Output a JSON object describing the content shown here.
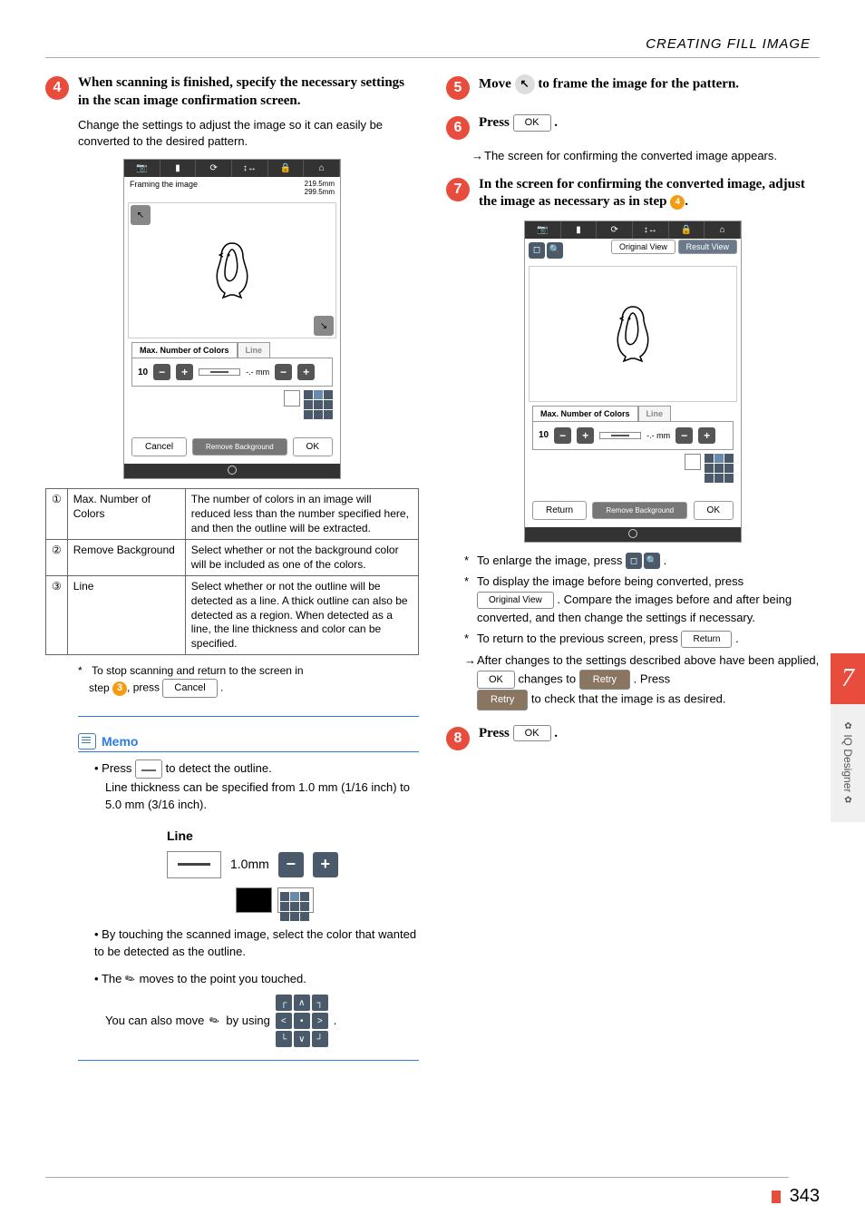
{
  "header": {
    "section_title": "CREATING FILL IMAGE"
  },
  "left": {
    "step4": {
      "num": "4",
      "title": "When scanning is finished, specify the necessary settings in the scan image confirmation screen.",
      "body": "Change the settings to adjust the image so it can easily be converted to the desired pattern."
    },
    "screenshot1": {
      "framing_label": "Framing the image",
      "size_w": "219.5mm",
      "size_h": "299.5mm",
      "tab_colors": "Max. Number of Colors",
      "tab_line": "Line",
      "color_val": "10",
      "line_val": "-.- mm",
      "cancel": "Cancel",
      "remove_bg": "Remove Background",
      "ok": "OK"
    },
    "table": {
      "rows": [
        {
          "idx": "①",
          "label": "Max. Number of Colors",
          "desc": "The number of colors in an image will reduced less than the number specified here, and then the outline will be extracted."
        },
        {
          "idx": "②",
          "label": "Remove Background",
          "desc": "Select whether or not the background color will be included as one of the colors."
        },
        {
          "idx": "③",
          "label": "Line",
          "desc": "Select whether or not the outline will be detected as a line. A thick outline can also be detected as a region. When detected as a line, the line thickness and color can be specified."
        }
      ]
    },
    "stop_note_pre": "To stop scanning and return to the screen in",
    "stop_note_step": "step",
    "stop_note_ref": "3",
    "stop_note_mid": ", press",
    "stop_note_btn": "Cancel",
    "memo": {
      "title": "Memo",
      "b1_pre": "Press",
      "b1_post": "to detect the outline.",
      "b1_line2": "Line thickness can be specified from 1.0 mm (1/16 inch) to 5.0 mm (3/16 inch).",
      "line_label": "Line",
      "line_val": "1.0mm",
      "b2": "By touching the scanned image, select the color that wanted to be detected as the outline.",
      "b3_pre": "The",
      "b3_post": "moves to the point you touched.",
      "b4_pre": "You can also move",
      "b4_mid": "by using"
    }
  },
  "right": {
    "step5": {
      "num": "5",
      "title_pre": "Move",
      "title_post": "to frame the image for the pattern."
    },
    "step6": {
      "num": "6",
      "title": "Press",
      "ok": "OK",
      "note": "The screen for confirming the converted image appears."
    },
    "step7": {
      "num": "7",
      "title": "In the screen for confirming the converted image, adjust the image as necessary as in step",
      "ref": "4"
    },
    "screenshot2": {
      "orig_view": "Original View",
      "result_view": "Result View",
      "tab_colors": "Max. Number of Colors",
      "tab_line": "Line",
      "color_val": "10",
      "line_val": "-.- mm",
      "return": "Return",
      "remove_bg": "Remove Background",
      "ok": "OK"
    },
    "notes": {
      "n1_pre": "To enlarge the image, press",
      "n2_pre": "To display the image before being converted, press",
      "n2_btn": "Original View",
      "n2_post": ". Compare the images before and after being converted, and then change the settings if necessary.",
      "n3_pre": "To return to the previous screen, press",
      "n3_btn": "Return",
      "n4_pre": "After changes to the settings described above have been applied,",
      "n4_ok": "OK",
      "n4_mid": "changes to",
      "n4_retry": "Retry",
      "n4_post1": ". Press",
      "n4_retry2": "Retry",
      "n4_post2": "to check that the image is as desired."
    },
    "step8": {
      "num": "8",
      "title": "Press",
      "ok": "OK"
    }
  },
  "side": {
    "chapter": "7",
    "label": "IQ Designer"
  },
  "footer": {
    "page": "343"
  }
}
